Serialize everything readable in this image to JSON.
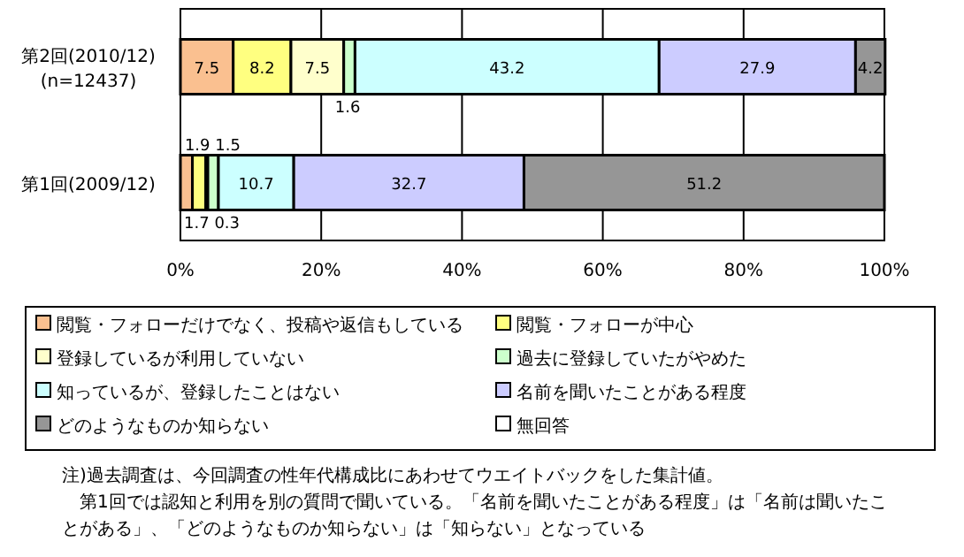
{
  "chart_data": {
    "type": "bar",
    "orientation": "horizontal",
    "stacked": true,
    "categories": [
      "第2回(2010/12)\n(n=12437)",
      "第1回(2009/12)"
    ],
    "series": [
      {
        "name": "閲覧・フォローだけでなく、投稿や返信もしている",
        "color": "#fac090",
        "values": [
          7.5,
          1.7
        ]
      },
      {
        "name": "閲覧・フォローが中心",
        "color": "#ffff80",
        "values": [
          8.2,
          1.9
        ]
      },
      {
        "name": "登録しているが利用していない",
        "color": "#ffffcc",
        "values": [
          7.5,
          0.3
        ]
      },
      {
        "name": "過去に登録していたがやめた",
        "color": "#ccffcc",
        "values": [
          1.6,
          1.5
        ]
      },
      {
        "name": "知っているが、登録したことはない",
        "color": "#ccffff",
        "values": [
          43.2,
          10.7
        ]
      },
      {
        "name": "名前を聞いたことがある程度",
        "color": "#ccccff",
        "values": [
          27.9,
          32.7
        ]
      },
      {
        "name": "どのようなものか知らない",
        "color": "#969696",
        "values": [
          4.2,
          51.2
        ]
      },
      {
        "name": "無回答",
        "color": "#ffffff",
        "values": [
          null,
          null
        ]
      }
    ],
    "xlim": [
      0,
      100
    ],
    "xticks": [
      {
        "value": 0,
        "label": "0%"
      },
      {
        "value": 20,
        "label": "20%"
      },
      {
        "value": 40,
        "label": "40%"
      },
      {
        "value": 60,
        "label": "60%"
      },
      {
        "value": 80,
        "label": "80%"
      },
      {
        "value": 100,
        "label": "100%"
      }
    ],
    "grid": "x",
    "legend": "bottom",
    "data_labels": true,
    "annotations": [
      "注)過去調査は、今回調査の性年代構成比にあわせてウエイトバックをした集計値。",
      "第1回では認知と利用を別の質問で聞いている。「名前を聞いたことがある程度」は「名前は聞いたことがある」、「どのようなものか知らない」は「知らない」となっている"
    ]
  }
}
